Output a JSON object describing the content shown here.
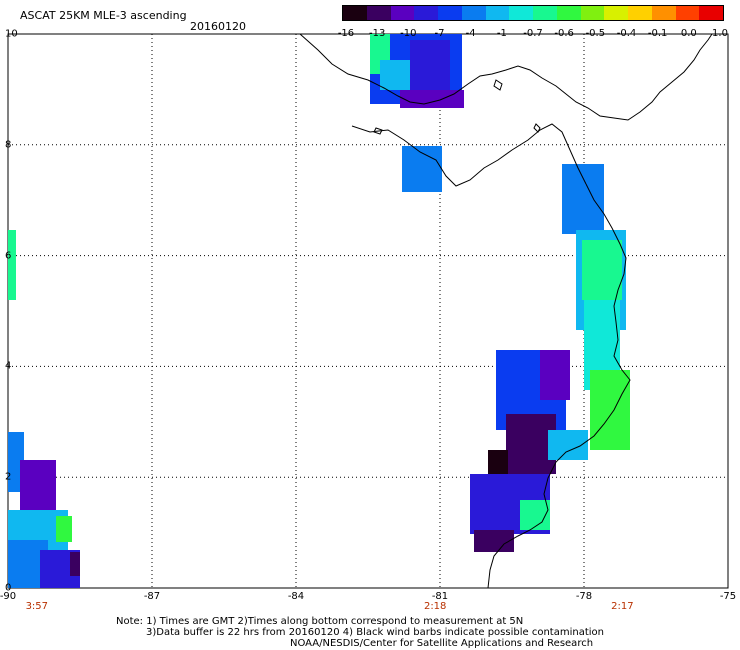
{
  "header": {
    "title": "ASCAT 25KM MLE-3 ascending",
    "date": "20160120"
  },
  "colorbar": {
    "labels": [
      "-16",
      "-13",
      "-10",
      "-7",
      "-4",
      "-1",
      "-0.7",
      "-0.6",
      "-0.5",
      "-0.4",
      "-0.1",
      "0.0",
      "1.0"
    ],
    "colors": [
      "#1a0010",
      "#3a0060",
      "#5a00c0",
      "#2a1ad8",
      "#0a3cf0",
      "#0a7cf0",
      "#10b8f0",
      "#10e8d8",
      "#18f890",
      "#30f840",
      "#80f010",
      "#d8f000",
      "#ffd000",
      "#ff9000",
      "#ff4000",
      "#e80000"
    ]
  },
  "axes": {
    "lon_labels": [
      "-90",
      "-87",
      "-84",
      "-81",
      "-78",
      "-75"
    ],
    "lat_labels": [
      "10",
      "8",
      "6",
      "4",
      "2",
      "0"
    ],
    "time_labels": [
      "3:57",
      "2:18",
      "2:17"
    ]
  },
  "footer": {
    "line1": "Note: 1) Times are GMT 2)Times along bottom correspond to measurement at 5N",
    "line2": "3)Data buffer is 22 hrs from 20160120 4) Black wind barbs indicate possible contamination",
    "line3": "NOAA/NESDIS/Center for Satellite Applications and Research"
  }
}
